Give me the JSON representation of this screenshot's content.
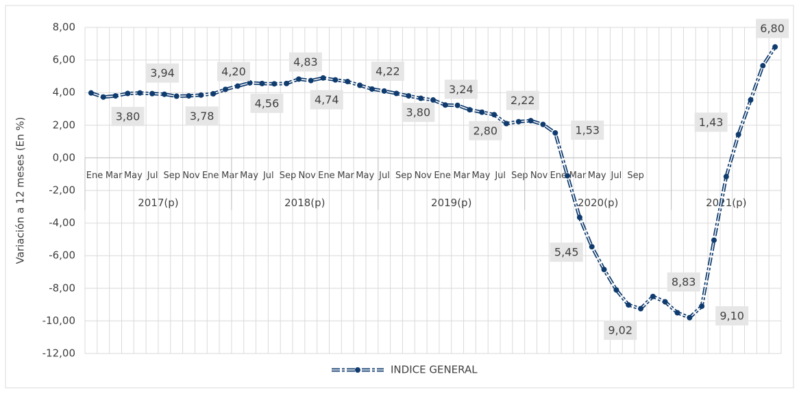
{
  "chart_data": {
    "type": "line",
    "y_label": "Variación a 12 meses (En %)",
    "categories": [
      "Ene",
      null,
      "Mar",
      null,
      "May",
      null,
      "Jul",
      null,
      "Sep",
      null,
      "Nov",
      null,
      "Ene",
      null,
      "Mar",
      null,
      "May",
      null,
      "Jul",
      null,
      "Sep",
      null,
      "Nov",
      null,
      "Ene",
      null,
      "Mar",
      null,
      "May",
      null,
      "Jul",
      null,
      "Sep",
      null,
      "Nov",
      null,
      "Ene",
      null,
      "Mar",
      null,
      "May",
      null,
      "Jul",
      null,
      "Sep",
      null,
      "Nov",
      null,
      "Ene",
      null,
      "Mar",
      null,
      "May",
      null,
      "Jul",
      null,
      "Sep"
    ],
    "groups": [
      {
        "name": "2017(p)",
        "months": 12
      },
      {
        "name": "2018(p)",
        "months": 12
      },
      {
        "name": "2019(p)",
        "months": 12
      },
      {
        "name": "2020(p)",
        "months": 12
      },
      {
        "name": "2021(p)",
        "months": 9
      }
    ],
    "series": [
      {
        "name": "INDICE GENERAL",
        "color": "#0f3b6e",
        "values": [
          3.98,
          3.73,
          3.8,
          3.95,
          3.98,
          3.94,
          3.9,
          3.78,
          3.8,
          3.85,
          3.93,
          4.2,
          4.4,
          4.6,
          4.56,
          4.54,
          4.56,
          4.83,
          4.74,
          4.9,
          4.78,
          4.68,
          4.45,
          4.22,
          4.1,
          3.95,
          3.8,
          3.65,
          3.55,
          3.24,
          3.22,
          2.95,
          2.8,
          2.65,
          2.1,
          2.22,
          2.28,
          2.05,
          1.53,
          -1.1,
          -3.65,
          -5.45,
          -6.85,
          -8.1,
          -9.02,
          -9.25,
          -8.5,
          -8.83,
          -9.5,
          -9.8,
          -9.1,
          -5.05,
          -1.15,
          1.43,
          3.55,
          5.65,
          6.8
        ],
        "value_labels": [
          null,
          null,
          "3,80",
          null,
          null,
          "3,94",
          null,
          "3,78",
          null,
          null,
          null,
          "4,20",
          null,
          null,
          "4,56",
          null,
          null,
          "4,83",
          "4,74",
          null,
          null,
          null,
          null,
          "4,22",
          null,
          null,
          "3,80",
          null,
          null,
          "3,24",
          null,
          null,
          "2,80",
          null,
          null,
          "2,22",
          null,
          null,
          "1,53",
          null,
          null,
          "5,45",
          null,
          null,
          "9,02",
          null,
          null,
          "8,83",
          null,
          null,
          "9,10",
          null,
          null,
          "1,43",
          null,
          null,
          "6,80"
        ]
      }
    ],
    "ylim": [
      -12,
      8
    ],
    "yticks": [
      {
        "value": -12,
        "label": "-12,00"
      },
      {
        "value": -10,
        "label": "-10,00"
      },
      {
        "value": -8,
        "label": "-8,00"
      },
      {
        "value": -6,
        "label": "-6,00"
      },
      {
        "value": -4,
        "label": "-4,00"
      },
      {
        "value": -2,
        "label": "-2,00"
      },
      {
        "value": 0,
        "label": "0,00"
      },
      {
        "value": 2,
        "label": "2,00"
      },
      {
        "value": 4,
        "label": "4,00"
      },
      {
        "value": 6,
        "label": "6,00"
      },
      {
        "value": 8,
        "label": "8,00"
      }
    ],
    "grid": true,
    "legend": "bottom"
  }
}
